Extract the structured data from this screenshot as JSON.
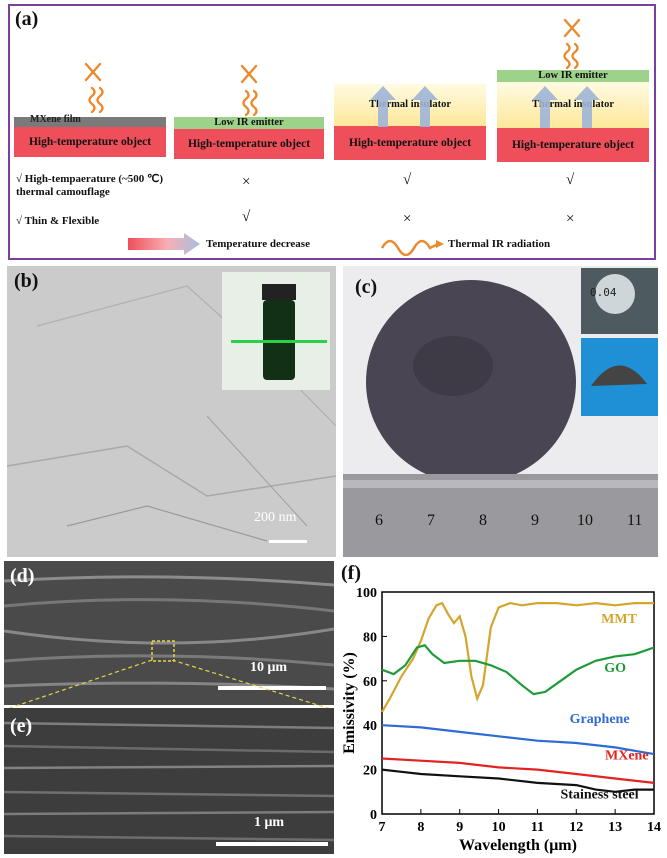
{
  "panel_a": {
    "label": "(a)",
    "col1": {
      "film": "MXene film",
      "object": "High-temperature object"
    },
    "col2": {
      "emitter": "Low IR emitter",
      "object": "High-temperature object"
    },
    "col3": {
      "insulator": "Thermal insulator",
      "object": "High-temperature object"
    },
    "col4": {
      "emitter": "Low IR emitter",
      "insulator": "Thermal insulator",
      "object": "High-temperature object"
    },
    "row1": {
      "line1": "√ High-tempaerature (~500 ℃)",
      "line2": "thermal camouflage",
      "marks": [
        "×",
        "√",
        "√"
      ]
    },
    "row2": {
      "label": "√ Thin & Flexible",
      "marks": [
        "√",
        "×",
        "×"
      ]
    },
    "legend": {
      "temp": "Temperature decrease",
      "ir": "Thermal IR radiation"
    },
    "colors": {
      "hot": "#ef4f5a",
      "emitter": "#9dd28a",
      "insulator": "#fde89a",
      "arrow": "#e98a2e",
      "frame": "#7b3fa0"
    }
  },
  "panel_b": {
    "label": "(b)",
    "scale": "200 nm"
  },
  "panel_c": {
    "label": "(c)",
    "gauge": "0.04",
    "ruler_ticks": [
      "6",
      "7",
      "8",
      "9",
      "10",
      "11"
    ]
  },
  "panel_d": {
    "label": "(d)",
    "scale": "10 μm"
  },
  "panel_e": {
    "label": "(e)",
    "scale": "1 μm"
  },
  "panel_f": {
    "label": "(f)"
  },
  "chart_data": {
    "type": "line",
    "xlabel": "Wavelength (μm)",
    "ylabel": "Emissivity (%)",
    "xlim": [
      7,
      14
    ],
    "ylim": [
      0,
      100
    ],
    "xticks": [
      "7",
      "8",
      "9",
      "10",
      "11",
      "12",
      "13",
      "14"
    ],
    "yticks": [
      "0",
      "20",
      "40",
      "60",
      "80",
      "100"
    ],
    "grid": false,
    "legend": "inline labels",
    "series": [
      {
        "name": "MMT",
        "color": "#d4a52c",
        "x": [
          7.0,
          7.2,
          7.5,
          7.8,
          8.0,
          8.2,
          8.4,
          8.55,
          8.7,
          8.85,
          9.0,
          9.15,
          9.3,
          9.45,
          9.6,
          9.8,
          10.0,
          10.3,
          10.6,
          11.0,
          11.5,
          12.0,
          12.5,
          13.0,
          13.5,
          14.0
        ],
        "values": [
          46,
          52,
          62,
          70,
          78,
          88,
          94,
          95,
          90,
          86,
          89,
          80,
          62,
          52,
          58,
          84,
          93,
          95,
          94,
          95,
          95,
          94,
          95,
          94,
          95,
          95
        ]
      },
      {
        "name": "GO",
        "color": "#1e9a3a",
        "x": [
          7.0,
          7.3,
          7.6,
          7.9,
          8.1,
          8.3,
          8.6,
          9.0,
          9.4,
          9.8,
          10.2,
          10.6,
          10.9,
          11.2,
          11.6,
          12.0,
          12.5,
          13.0,
          13.5,
          14.0
        ],
        "values": [
          65,
          63,
          67,
          75,
          76,
          72,
          68,
          69,
          69,
          67,
          64,
          58,
          54,
          55,
          60,
          65,
          69,
          71,
          72,
          75
        ]
      },
      {
        "name": "Graphene",
        "color": "#2f6bd4",
        "x": [
          7,
          8,
          9,
          10,
          11,
          12,
          13,
          14
        ],
        "values": [
          40,
          39,
          37,
          35,
          33,
          32,
          30,
          27
        ]
      },
      {
        "name": "MXene",
        "color": "#e32222",
        "x": [
          7,
          8,
          9,
          10,
          11,
          12,
          13,
          14
        ],
        "values": [
          25,
          24,
          23,
          21,
          20,
          18,
          16,
          14
        ]
      },
      {
        "name": "Stainess steel",
        "color": "#111111",
        "x": [
          7,
          7.5,
          8,
          9,
          10,
          11,
          12,
          12.5,
          13,
          13.5,
          14
        ],
        "values": [
          20,
          19,
          18,
          17,
          16,
          14,
          13,
          11,
          10,
          11,
          11
        ]
      }
    ]
  }
}
